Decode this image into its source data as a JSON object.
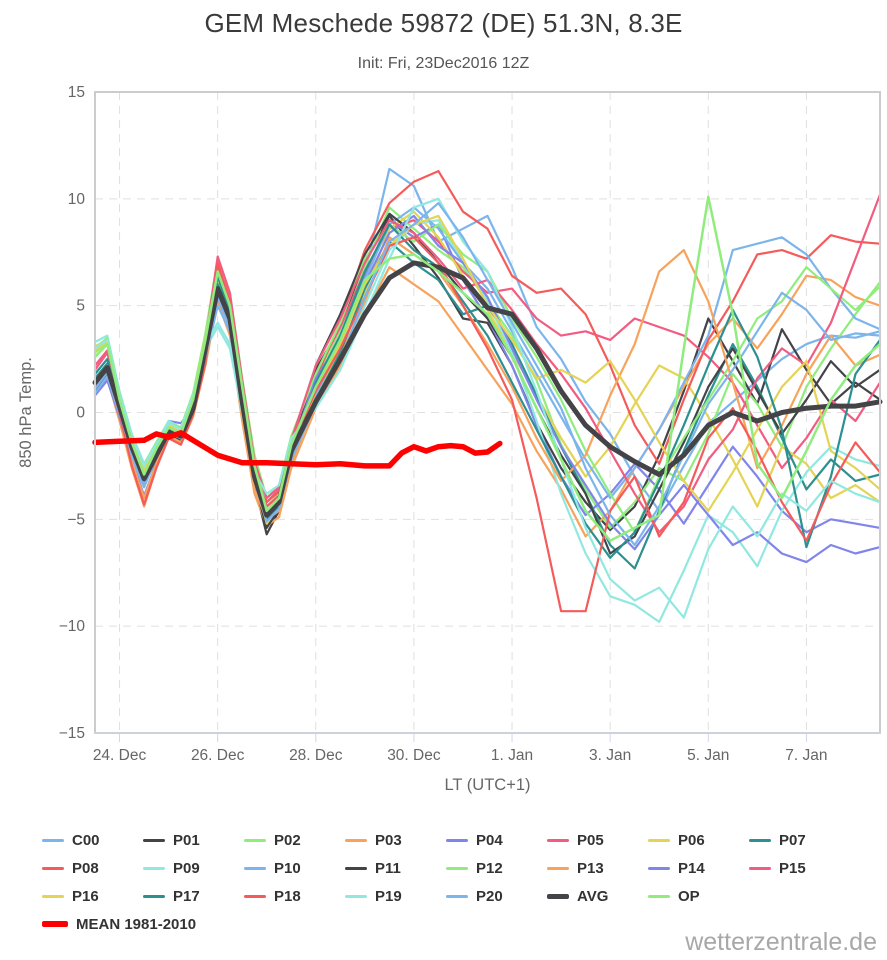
{
  "header": {
    "title": "GEM Meschede 59872 (DE) 51.3N, 8.3E",
    "subtitle": "Init: Fri, 23Dec2016 12Z"
  },
  "watermark": "wetterzentrale.de",
  "chart_data": {
    "type": "line",
    "title": "GEM Meschede 59872 (DE) 51.3N, 8.3E",
    "subtitle": "Init: Fri, 23Dec2016 12Z",
    "xlabel": "LT (UTC+1)",
    "ylabel": "850 hPa Temp.",
    "ylim": [
      -15,
      15
    ],
    "y_ticks": [
      -15,
      -10,
      -5,
      0,
      5,
      10,
      15
    ],
    "x_domain_days": [
      0,
      16
    ],
    "x_ticks": [
      {
        "t": 0.5,
        "label": "24. Dec"
      },
      {
        "t": 2.5,
        "label": "26. Dec"
      },
      {
        "t": 4.5,
        "label": "28. Dec"
      },
      {
        "t": 6.5,
        "label": "30. Dec"
      },
      {
        "t": 8.5,
        "label": "1. Jan"
      },
      {
        "t": 10.5,
        "label": "3. Jan"
      },
      {
        "t": 12.5,
        "label": "5. Jan"
      },
      {
        "t": 14.5,
        "label": "7. Jan"
      }
    ],
    "grid": "dashed",
    "legend_position": "bottom",
    "x_unit": "days since init 23Dec2016 12Z",
    "shared_x": [
      0,
      0.25,
      0.5,
      0.75,
      1,
      1.25,
      1.5,
      1.75,
      2,
      2.25,
      2.5,
      2.75,
      3,
      3.25,
      3.5,
      3.75,
      4,
      4.5,
      5,
      5.5,
      6,
      6.5,
      7,
      7.5,
      8,
      8.5,
      9,
      9.5,
      10,
      10.5,
      11,
      11.5,
      12,
      12.5,
      13,
      13.5,
      14,
      14.5,
      15,
      15.5,
      16
    ],
    "series": [
      {
        "name": "C00",
        "color": "#7cb5ec",
        "width": 2.2,
        "values": [
          1.2,
          2.0,
          0.2,
          -1.7,
          -3.0,
          -1.8,
          -0.7,
          -1.0,
          0.4,
          2.8,
          6.0,
          4.6,
          0.8,
          -2.6,
          -4.6,
          -4.0,
          -1.6,
          1.0,
          3.0,
          6.5,
          11.4,
          10.6,
          8.0,
          8.6,
          9.2,
          6.8,
          4.0,
          2.5,
          0.5,
          -1.0,
          -3.0,
          -4.6,
          -2.5,
          -0.5,
          0.5,
          1.5,
          2.5,
          3.2,
          3.6,
          3.5,
          3.8
        ]
      },
      {
        "name": "P01",
        "color": "#434348",
        "width": 2.2,
        "values": [
          1.0,
          1.8,
          0.0,
          -2.0,
          -3.4,
          -2.2,
          -1.0,
          -1.3,
          0.0,
          2.6,
          6.2,
          4.2,
          0.2,
          -3.4,
          -5.7,
          -4.6,
          -2.2,
          2.0,
          4.0,
          7.0,
          9.2,
          7.8,
          6.3,
          4.4,
          4.2,
          2.2,
          -0.5,
          -2.6,
          -4.2,
          -5.5,
          -4.4,
          -2.0,
          1.0,
          4.4,
          2.4,
          0.4,
          3.9,
          2.0,
          0.4,
          1.4,
          0.6
        ]
      },
      {
        "name": "P02",
        "color": "#90ed7d",
        "width": 2.2,
        "values": [
          2.8,
          3.3,
          0.6,
          -1.4,
          -2.8,
          -1.6,
          -0.6,
          -0.9,
          0.6,
          3.4,
          6.8,
          5.2,
          1.2,
          -2.4,
          -4.4,
          -3.8,
          -1.2,
          1.5,
          3.8,
          6.8,
          9.6,
          8.6,
          7.6,
          6.8,
          5.2,
          3.6,
          1.5,
          -1.5,
          -3.6,
          -5.4,
          -4.2,
          -2.6,
          -3.2,
          -1.0,
          1.8,
          0.4,
          -1.6,
          1.2,
          3.0,
          4.6,
          6.1
        ]
      },
      {
        "name": "P03",
        "color": "#f7a35c",
        "width": 2.2,
        "values": [
          0.9,
          1.6,
          -0.4,
          -2.6,
          -4.4,
          -2.6,
          -1.2,
          -1.5,
          -0.2,
          2.2,
          5.2,
          3.6,
          -0.4,
          -3.8,
          -5.3,
          -4.9,
          -2.6,
          0.2,
          2.2,
          4.6,
          6.8,
          6.0,
          5.2,
          3.6,
          2.0,
          0.4,
          -1.8,
          -3.6,
          -5.8,
          -4.6,
          -2.6,
          -0.8,
          1.2,
          3.2,
          4.4,
          3.0,
          4.6,
          6.4,
          6.2,
          5.4,
          5.0
        ]
      },
      {
        "name": "P04",
        "color": "#8085e9",
        "width": 2.2,
        "values": [
          0.8,
          1.5,
          -0.2,
          -2.2,
          -3.9,
          -2.4,
          -0.4,
          -0.5,
          0.2,
          2.4,
          5.4,
          4.0,
          0.4,
          -3.0,
          -4.9,
          -4.3,
          -2.0,
          1.4,
          3.6,
          6.4,
          9.0,
          8.2,
          8.8,
          6.2,
          4.4,
          2.2,
          -0.6,
          -3.0,
          -4.8,
          -3.8,
          -2.4,
          -3.6,
          -5.2,
          -3.4,
          -1.6,
          -3.0,
          -4.6,
          -5.6,
          -5.0,
          -5.2,
          -5.4
        ]
      },
      {
        "name": "P05",
        "color": "#f15c80",
        "width": 2.2,
        "values": [
          2.2,
          2.9,
          0.5,
          -1.5,
          -2.9,
          -1.7,
          -0.8,
          -1.1,
          0.5,
          3.2,
          7.0,
          5.4,
          1.4,
          -2.2,
          -4.2,
          -3.6,
          -1.4,
          1.8,
          4.0,
          6.6,
          8.6,
          9.0,
          8.0,
          6.6,
          5.6,
          5.8,
          4.4,
          3.6,
          3.8,
          3.4,
          4.4,
          4.0,
          3.6,
          2.6,
          1.4,
          -0.6,
          -2.6,
          -1.2,
          0.6,
          -0.4,
          1.4
        ]
      },
      {
        "name": "P06",
        "color": "#e4d354",
        "width": 2.2,
        "values": [
          3.1,
          3.4,
          0.8,
          -1.2,
          -2.6,
          -1.5,
          -0.5,
          -0.8,
          0.8,
          3.6,
          6.2,
          4.8,
          1.0,
          -2.8,
          -4.8,
          -4.2,
          -1.8,
          0.8,
          2.8,
          5.6,
          8.6,
          9.4,
          8.2,
          6.4,
          4.8,
          2.8,
          0.8,
          -1.2,
          -3.0,
          -1.6,
          0.4,
          2.2,
          1.6,
          -0.2,
          -2.2,
          -4.4,
          -1.6,
          -2.4,
          -4.0,
          -3.4,
          -4.2
        ]
      },
      {
        "name": "P07",
        "color": "#2b908f",
        "width": 2.2,
        "values": [
          1.6,
          2.3,
          0.3,
          -1.6,
          -3.1,
          -1.9,
          -0.9,
          -1.2,
          0.3,
          3.0,
          6.0,
          4.4,
          0.6,
          -3.2,
          -4.6,
          -4.1,
          -1.9,
          0.6,
          2.8,
          5.8,
          8.0,
          7.0,
          6.2,
          4.6,
          5.0,
          3.2,
          0.8,
          -1.6,
          -3.8,
          -6.2,
          -7.3,
          -4.6,
          -1.8,
          0.8,
          3.2,
          1.2,
          -1.2,
          -3.6,
          -2.2,
          -3.2,
          -2.9
        ]
      },
      {
        "name": "P08",
        "color": "#f45b5b",
        "width": 2.2,
        "values": [
          1.5,
          2.2,
          0.1,
          -2.4,
          -4.3,
          -2.5,
          -1.1,
          -1.4,
          0.1,
          2.7,
          6.8,
          5.0,
          0.9,
          -2.5,
          -4.2,
          -3.7,
          -1.5,
          1.6,
          4.2,
          7.6,
          9.8,
          10.8,
          11.3,
          9.4,
          8.6,
          6.4,
          5.6,
          5.8,
          4.6,
          2.2,
          -0.6,
          -2.4,
          0.6,
          3.4,
          5.2,
          7.4,
          7.6,
          7.2,
          8.3,
          8.0,
          7.9
        ]
      },
      {
        "name": "P09",
        "color": "#91e8e1",
        "width": 2.2,
        "values": [
          3.3,
          3.6,
          1.0,
          -1.0,
          -2.4,
          -1.4,
          -0.4,
          -0.7,
          0.9,
          3.0,
          4.0,
          3.0,
          0.0,
          -2.9,
          -4.0,
          -3.5,
          -1.3,
          0.4,
          2.4,
          5.0,
          7.6,
          8.8,
          9.0,
          7.0,
          5.2,
          2.8,
          -0.4,
          -3.8,
          -6.6,
          -8.6,
          -9.0,
          -9.8,
          -7.4,
          -4.8,
          -5.6,
          -7.2,
          -4.6,
          -2.8,
          -1.6,
          -2.2,
          -2.5
        ]
      },
      {
        "name": "P10",
        "color": "#7cb5ec",
        "width": 2.2,
        "values": [
          0.9,
          1.7,
          -0.1,
          -2.1,
          -3.5,
          -2.1,
          -1.0,
          -1.2,
          0.2,
          2.5,
          5.0,
          3.8,
          0.3,
          -3.1,
          -4.8,
          -4.4,
          -2.1,
          0.8,
          3.2,
          6.2,
          8.8,
          9.6,
          8.6,
          7.0,
          5.8,
          3.8,
          1.8,
          -0.2,
          -2.2,
          -4.0,
          -2.6,
          -0.8,
          1.4,
          3.6,
          7.6,
          7.9,
          8.2,
          7.4,
          5.8,
          4.4,
          3.9
        ]
      },
      {
        "name": "P11",
        "color": "#434348",
        "width": 2.2,
        "values": [
          1.2,
          2.1,
          0.2,
          -1.9,
          -3.3,
          -2.0,
          -0.8,
          -1.1,
          0.3,
          2.9,
          6.6,
          4.7,
          0.7,
          -3.3,
          -5.4,
          -4.5,
          -2.0,
          2.2,
          4.6,
          7.4,
          9.3,
          8.4,
          7.0,
          5.6,
          4.4,
          2.6,
          0.2,
          -2.0,
          -3.8,
          -6.6,
          -5.8,
          -3.6,
          -1.4,
          1.2,
          3.0,
          1.0,
          -1.0,
          0.6,
          2.4,
          1.2,
          2.0
        ]
      },
      {
        "name": "P12",
        "color": "#90ed7d",
        "width": 2.2,
        "values": [
          3.0,
          3.5,
          0.9,
          -1.1,
          -2.5,
          -1.4,
          -0.5,
          -0.7,
          0.9,
          3.7,
          7.2,
          5.6,
          1.6,
          -2.0,
          -4.0,
          -3.4,
          -1.1,
          1.8,
          4.2,
          7.2,
          8.8,
          8.0,
          8.8,
          7.4,
          6.6,
          4.4,
          2.6,
          0.6,
          -1.8,
          -3.8,
          -5.6,
          -3.0,
          -1.2,
          0.6,
          2.4,
          4.4,
          5.2,
          6.8,
          5.8,
          4.8,
          5.9
        ]
      },
      {
        "name": "P13",
        "color": "#f7a35c",
        "width": 2.2,
        "values": [
          1.1,
          1.9,
          0.0,
          -2.3,
          -4.0,
          -2.4,
          -1.1,
          -1.4,
          0.0,
          2.4,
          5.6,
          4.0,
          0.2,
          -3.6,
          -5.0,
          -4.6,
          -2.4,
          0.6,
          2.6,
          5.2,
          8.2,
          7.4,
          6.6,
          5.0,
          3.2,
          1.2,
          -1.2,
          -3.2,
          -2.0,
          0.8,
          3.2,
          6.6,
          7.6,
          5.2,
          1.4,
          -2.6,
          -0.6,
          1.8,
          3.6,
          2.2,
          2.7
        ]
      },
      {
        "name": "P14",
        "color": "#8085e9",
        "width": 2.2,
        "values": [
          1.3,
          2.2,
          0.2,
          -1.8,
          -3.2,
          -1.9,
          -0.7,
          -1.0,
          0.4,
          3.0,
          6.4,
          4.8,
          0.8,
          -2.7,
          -4.4,
          -3.9,
          -1.7,
          1.6,
          3.4,
          6.0,
          8.4,
          9.2,
          7.8,
          7.0,
          5.4,
          3.0,
          0.6,
          -1.6,
          -3.4,
          -5.2,
          -6.4,
          -4.8,
          -3.4,
          -4.8,
          -6.2,
          -5.6,
          -6.6,
          -7.0,
          -6.2,
          -6.6,
          -6.3
        ]
      },
      {
        "name": "P15",
        "color": "#f15c80",
        "width": 2.2,
        "values": [
          2.0,
          2.8,
          0.4,
          -1.6,
          -3.0,
          -1.8,
          -0.8,
          -1.0,
          0.5,
          3.3,
          7.3,
          5.6,
          1.5,
          -2.3,
          -4.0,
          -3.5,
          -1.3,
          2.2,
          4.4,
          7.0,
          9.0,
          8.4,
          7.2,
          5.8,
          6.2,
          4.8,
          3.2,
          1.8,
          0.2,
          -1.8,
          -3.8,
          -5.6,
          -4.4,
          -2.2,
          -0.8,
          1.6,
          3.0,
          2.2,
          4.2,
          7.2,
          10.2
        ]
      },
      {
        "name": "P16",
        "color": "#e4d354",
        "width": 2.2,
        "values": [
          2.9,
          3.3,
          0.7,
          -1.3,
          -2.7,
          -1.6,
          -0.6,
          -0.9,
          0.7,
          3.5,
          6.6,
          5.0,
          1.1,
          -2.9,
          -5.2,
          -4.4,
          -2.0,
          1.0,
          3.2,
          6.0,
          7.8,
          8.8,
          9.2,
          7.2,
          5.0,
          3.4,
          1.6,
          2.0,
          1.4,
          2.4,
          0.6,
          -1.4,
          -3.2,
          -4.6,
          -2.8,
          -0.8,
          1.2,
          2.4,
          -1.8,
          -2.6,
          -3.6
        ]
      },
      {
        "name": "P17",
        "color": "#2b908f",
        "width": 2.2,
        "values": [
          1.8,
          2.5,
          0.3,
          -1.7,
          -3.2,
          -2.0,
          -0.9,
          -1.2,
          0.2,
          2.8,
          6.4,
          4.6,
          0.6,
          -3.2,
          -5.0,
          -4.4,
          -2.1,
          1.4,
          3.6,
          6.6,
          8.8,
          7.6,
          6.8,
          5.2,
          3.6,
          1.4,
          -0.8,
          -3.0,
          -5.2,
          -6.8,
          -5.6,
          -3.2,
          -0.6,
          2.2,
          4.8,
          2.6,
          -0.8,
          -6.3,
          -3.0,
          1.8,
          3.4
        ]
      },
      {
        "name": "P18",
        "color": "#f45b5b",
        "width": 2.2,
        "values": [
          1.4,
          2.1,
          0.0,
          -2.5,
          -4.3,
          -2.6,
          -1.2,
          -1.5,
          -0.1,
          2.3,
          7.0,
          5.2,
          1.0,
          -2.6,
          -4.4,
          -3.9,
          -1.6,
          1.0,
          3.0,
          5.4,
          7.8,
          8.2,
          7.0,
          5.0,
          3.0,
          0.6,
          -4.0,
          -9.3,
          -9.3,
          -4.6,
          -3.0,
          -5.8,
          -4.2,
          -1.2,
          0.2,
          -1.8,
          -4.2,
          -6.0,
          -3.4,
          -1.4,
          -2.8
        ]
      },
      {
        "name": "P19",
        "color": "#91e8e1",
        "width": 2.2,
        "values": [
          3.0,
          3.4,
          0.8,
          -1.1,
          -2.5,
          -1.5,
          -0.5,
          -0.8,
          0.8,
          3.2,
          4.2,
          3.2,
          0.1,
          -2.8,
          -3.8,
          -3.4,
          -1.2,
          0.2,
          2.0,
          4.6,
          7.2,
          9.6,
          10.0,
          8.0,
          6.6,
          4.0,
          1.0,
          -2.2,
          -5.4,
          -7.8,
          -8.8,
          -8.2,
          -9.6,
          -6.4,
          -4.4,
          -5.8,
          -3.8,
          -4.6,
          -3.2,
          -3.8,
          -4.2
        ]
      },
      {
        "name": "P20",
        "color": "#7cb5ec",
        "width": 2.2,
        "values": [
          1.1,
          1.9,
          0.1,
          -2.0,
          -3.4,
          -2.1,
          -0.9,
          -1.2,
          0.1,
          2.6,
          5.4,
          4.0,
          0.4,
          -3.2,
          -5.1,
          -4.5,
          -2.2,
          0.4,
          2.4,
          5.4,
          8.0,
          8.8,
          9.8,
          8.2,
          6.2,
          4.2,
          2.2,
          0.2,
          -2.6,
          -4.8,
          -6.2,
          -4.4,
          -2.0,
          0.4,
          2.0,
          3.8,
          5.6,
          4.8,
          3.4,
          3.7,
          3.6
        ]
      },
      {
        "name": "AVG",
        "color": "#434348",
        "width": 5,
        "values": [
          1.4,
          2.1,
          0.3,
          -1.6,
          -3.1,
          -2.0,
          -0.9,
          -1.1,
          0.2,
          3.0,
          5.8,
          4.4,
          0.5,
          -3.0,
          -4.8,
          -4.2,
          -1.8,
          0.5,
          2.5,
          4.6,
          6.3,
          7.0,
          6.8,
          6.3,
          4.9,
          4.6,
          3.0,
          1.0,
          -0.6,
          -1.6,
          -2.3,
          -2.9,
          -2.0,
          -0.6,
          0.0,
          -0.4,
          0.0,
          0.2,
          0.3,
          0.3,
          0.5
        ]
      },
      {
        "name": "OP",
        "color": "#90ed7d",
        "width": 2.5,
        "values": [
          2.6,
          3.2,
          0.6,
          -1.4,
          -2.9,
          -1.7,
          -0.7,
          -1.0,
          0.6,
          3.4,
          6.6,
          5.0,
          1.2,
          -2.5,
          -4.6,
          -4.0,
          -1.5,
          1.2,
          3.4,
          6.2,
          7.2,
          7.4,
          6.6,
          5.6,
          4.6,
          2.6,
          0.2,
          -2.2,
          -4.6,
          -6.0,
          -5.4,
          -4.8,
          3.0,
          10.1,
          4.6,
          -2.4,
          -4.0,
          -1.8,
          0.6,
          2.2,
          3.2
        ]
      },
      {
        "name": "MEAN 1981-2010",
        "color": "#ff0000",
        "width": 5.5,
        "x": [
          0,
          0.5,
          1,
          1.25,
          1.5,
          1.75,
          2,
          2.5,
          3,
          3.5,
          4,
          4.5,
          5,
          5.5,
          6,
          6.25,
          6.5,
          6.75,
          7,
          7.25,
          7.5,
          7.75,
          8,
          8.25
        ],
        "values": [
          -1.4,
          -1.35,
          -1.3,
          -1.0,
          -1.15,
          -0.95,
          -1.3,
          -2.0,
          -2.35,
          -2.35,
          -2.4,
          -2.45,
          -2.4,
          -2.5,
          -2.5,
          -1.9,
          -1.6,
          -1.8,
          -1.6,
          -1.55,
          -1.6,
          -1.9,
          -1.85,
          -1.45
        ]
      }
    ],
    "style": {
      "plot_border_color": "#cccccc",
      "axis_line_color": "#ccd6eb",
      "grid_color": "#e0e0e0",
      "label_color": "#666666"
    }
  }
}
